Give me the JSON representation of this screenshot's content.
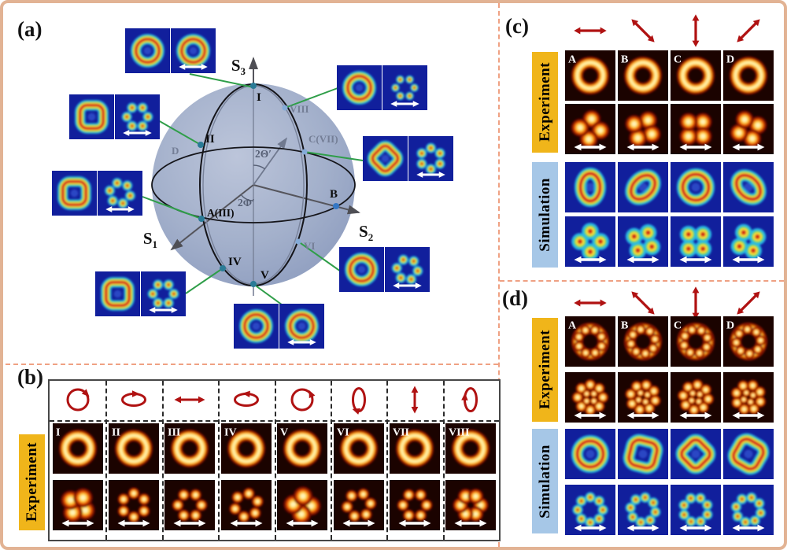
{
  "colors": {
    "accent_gold": "#f0b51a",
    "accent_blue": "#a6c7e7",
    "symbol_dark_red": "#b01212",
    "connector_green": "#2f9e49",
    "border_salmon": "#e2b394",
    "divider_salmon": "#efa183",
    "sphere_fill": "#9fadca"
  },
  "panel_a": {
    "label": "(a)",
    "axes": {
      "s1": [
        "S",
        "1"
      ],
      "s2": [
        "S",
        "2"
      ],
      "s3": [
        "S",
        "3"
      ]
    },
    "angles": {
      "theta": "2Θ′",
      "phi": "2Φ′"
    },
    "points": {
      "I": "I",
      "II": "II",
      "III": "A(III)",
      "IV": "IV",
      "V": "V",
      "VI": "VI",
      "VII": "C(VII)",
      "VIII": "VIII",
      "B": "B",
      "D": "D"
    },
    "image_pairs": [
      {
        "point": "I",
        "left": "jet:ring",
        "right": "jet:ring:12",
        "arrow": true
      },
      {
        "point": "II",
        "left": "jet:ring-square",
        "right": "jet:dots6",
        "arrow": true
      },
      {
        "point": "III",
        "left": "jet:ring-square",
        "right": "jet:dots6:14",
        "arrow": true
      },
      {
        "point": "IV",
        "left": "jet:ring-square",
        "right": "jet:dots6",
        "arrow": true
      },
      {
        "point": "V",
        "left": "jet:ring",
        "right": "jet:ring:-12",
        "arrow": true
      },
      {
        "point": "VI",
        "left": "jet:ring",
        "right": "jet:dots6:8",
        "arrow": true
      },
      {
        "point": "VII",
        "left": "jet:ring-diamond",
        "right": "jet:dots6p",
        "arrow": true
      },
      {
        "point": "VIII",
        "left": "jet:ring",
        "right": "jet:dots6s",
        "arrow": true
      }
    ]
  },
  "panel_b": {
    "label": "(b)",
    "row_label": "Experiment",
    "col_labels": [
      "I",
      "II",
      "III",
      "IV",
      "V",
      "VI",
      "VII",
      "VIII"
    ],
    "polarizations": [
      "circle-cw",
      "ellipse-h-cw",
      "linear-h",
      "ellipse-h-ccw",
      "circle-ccw",
      "ellipse-v-cw",
      "linear-v",
      "ellipse-v-ccw"
    ],
    "intensity_row": [
      "hot:ring",
      "hot:ring:14",
      "hot:ring:28",
      "hot:ring:-14",
      "hot:ring:7",
      "hot:ring:-28",
      "hot:ring:3",
      "hot:ring:20"
    ],
    "analyzed_row": [
      "hot:blob4:15",
      "hot:dots6p",
      "hot:dots6p:30",
      "hot:dots6p:12",
      "hot:blob4:-15",
      "hot:dots6p:22",
      "hot:dots6p:30",
      "hot:lobes6"
    ]
  },
  "panel_c": {
    "label": "(c)",
    "col_labels": [
      "A",
      "B",
      "C",
      "D"
    ],
    "row_labels": [
      "Experiment",
      "Simulation"
    ],
    "polarizer_arrows": [
      "horizontal",
      "diag-down",
      "vertical",
      "diag-up"
    ],
    "rows": [
      {
        "name": "experiment-intensity",
        "labeled": true,
        "patterns": [
          "hot:ring",
          "hot:ring:15",
          "hot:ring:-8",
          "hot:ring:25"
        ]
      },
      {
        "name": "experiment-analyzed",
        "arrows": true,
        "patterns": [
          "hot:lobes4:8",
          "hot:lobes4:30",
          "hot:lobes4:45",
          "hot:lobes4:68"
        ]
      },
      {
        "name": "simulation-intensity",
        "patterns": [
          "jet:ring-oval",
          "jet:ring-oval:45",
          "jet:ring",
          "jet:ring-oval:-45"
        ]
      },
      {
        "name": "simulation-analyzed",
        "arrows": true,
        "patterns": [
          "jet:lobes4",
          "jet:lobes4:30",
          "jet:lobes4:45",
          "jet:lobes4:62"
        ]
      }
    ]
  },
  "panel_d": {
    "label": "(d)",
    "col_labels": [
      "A",
      "B",
      "C",
      "D"
    ],
    "row_labels": [
      "Experiment",
      "Simulation"
    ],
    "polarizer_arrows": [
      "horizontal",
      "diag-down",
      "vertical",
      "diag-up"
    ],
    "rows": [
      {
        "name": "experiment-intensity",
        "labeled": true,
        "patterns": [
          "hot:gear8",
          "hot:gear8:12",
          "hot:gear8:5",
          "hot:gear8:18"
        ]
      },
      {
        "name": "experiment-analyzed",
        "arrows": true,
        "patterns": [
          "hot:flower8",
          "hot:flower8:15",
          "hot:flower8:8",
          "hot:flower8:20"
        ]
      },
      {
        "name": "simulation-intensity",
        "patterns": [
          "jet:ring",
          "jet:ring-square:14",
          "jet:ring-diamond",
          "jet:ring-square:30"
        ]
      },
      {
        "name": "simulation-analyzed",
        "arrows": true,
        "patterns": [
          "jet:dots8",
          "jet:dots8:10",
          "jet:dots8:22",
          "jet:dots8:14"
        ]
      }
    ]
  }
}
